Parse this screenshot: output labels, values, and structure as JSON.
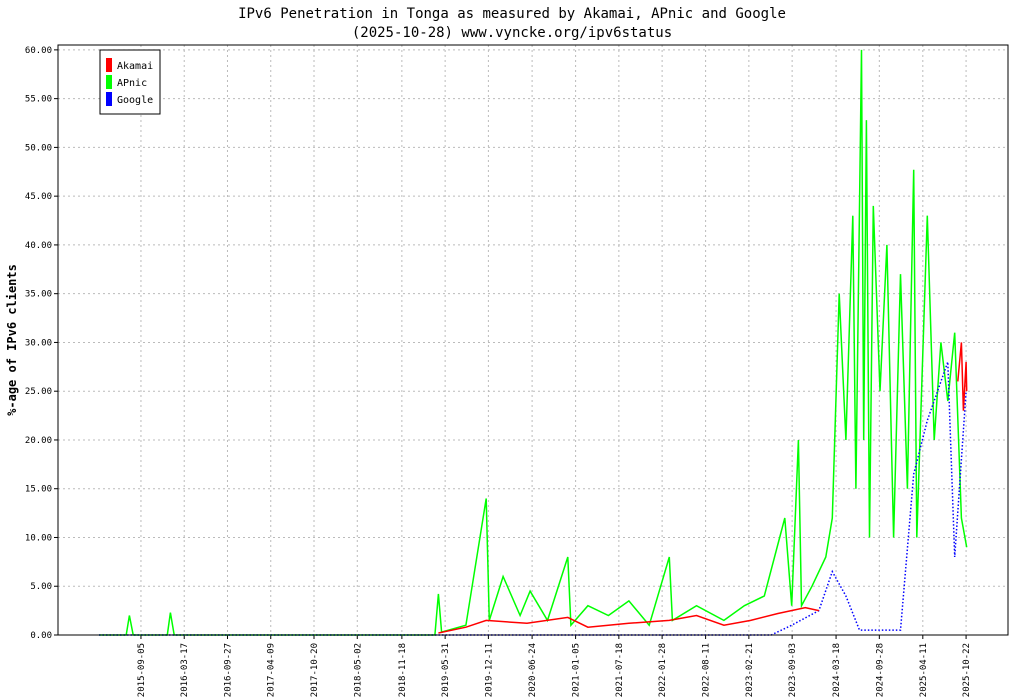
{
  "chart_data": {
    "type": "line",
    "title": "IPv6 Penetration in Tonga as measured by Akamai, APnic and Google",
    "subtitle": "(2025-10-28) www.vyncke.org/ipv6status",
    "y_label": "%-age of IPv6 clients",
    "legend": "upper left",
    "grid": true,
    "xlim": [
      "2014-08-29",
      "2026-04-28"
    ],
    "ylim": [
      0,
      60.5
    ],
    "xticks": [
      "2015-09-05",
      "2016-03-17",
      "2016-09-27",
      "2017-04-09",
      "2017-10-20",
      "2018-05-02",
      "2018-11-18",
      "2019-05-31",
      "2019-12-11",
      "2020-06-24",
      "2021-01-05",
      "2021-07-18",
      "2022-01-28",
      "2022-08-11",
      "2023-02-21",
      "2023-09-03",
      "2024-03-18",
      "2024-09-28",
      "2025-04-11",
      "2025-10-22"
    ],
    "yticks": [
      {
        "value": 0,
        "label": "0.00"
      },
      {
        "value": 5,
        "label": "5.00"
      },
      {
        "value": 10,
        "label": "10.00"
      },
      {
        "value": 15,
        "label": "15.00"
      },
      {
        "value": 20,
        "label": "20.00"
      },
      {
        "value": 25,
        "label": "25.00"
      },
      {
        "value": 30,
        "label": "30.00"
      },
      {
        "value": 35,
        "label": "35.00"
      },
      {
        "value": 40,
        "label": "40.00"
      },
      {
        "value": 45,
        "label": "45.00"
      },
      {
        "value": 50,
        "label": "50.00"
      },
      {
        "value": 55,
        "label": "55.00"
      },
      {
        "value": 60,
        "label": "60.00"
      }
    ],
    "series": [
      {
        "name": "Akamai",
        "color": "#ff0000",
        "style": "solid",
        "x": [
          "2019-05-01",
          "2019-09-01",
          "2019-12-01",
          "2020-06-01",
          "2020-12-01",
          "2021-03-01",
          "2021-09-01",
          "2022-03-01",
          "2022-07-01",
          "2022-11-01",
          "2023-03-01",
          "2023-07-01",
          "2023-11-01",
          "2024-01-01",
          "2024-02-01",
          "2025-09-15",
          "2025-10-01",
          "2025-10-10",
          "2025-10-22",
          "2025-10-25"
        ],
        "values": [
          0.2,
          0.8,
          1.5,
          1.2,
          1.8,
          0.8,
          1.2,
          1.5,
          2.0,
          1.0,
          1.5,
          2.2,
          2.8,
          2.5,
          null,
          26,
          30,
          23,
          28,
          25
        ]
      },
      {
        "name": "APnic",
        "color": "#00ff00",
        "style": "solid",
        "x": [
          "2015-03-01",
          "2015-07-01",
          "2015-07-15",
          "2015-08-01",
          "2016-01-01",
          "2016-01-15",
          "2016-02-01",
          "2019-04-15",
          "2019-05-01",
          "2019-05-15",
          "2019-09-01",
          "2019-12-01",
          "2019-12-15",
          "2020-02-15",
          "2020-05-01",
          "2020-06-15",
          "2020-09-01",
          "2020-12-01",
          "2020-12-15",
          "2021-03-01",
          "2021-06-01",
          "2021-09-01",
          "2021-12-01",
          "2022-03-01",
          "2022-03-15",
          "2022-07-01",
          "2022-11-01",
          "2023-02-01",
          "2023-05-01",
          "2023-08-01",
          "2023-09-01",
          "2023-10-01",
          "2023-10-15",
          "2023-12-01",
          "2024-02-01",
          "2024-03-01",
          "2024-04-01",
          "2024-05-01",
          "2024-06-01",
          "2024-06-15",
          "2024-07-10",
          "2024-07-20",
          "2024-08-01",
          "2024-08-15",
          "2024-09-01",
          "2024-10-01",
          "2024-11-01",
          "2024-12-01",
          "2025-01-01",
          "2025-02-01",
          "2025-03-01",
          "2025-03-15",
          "2025-05-01",
          "2025-06-01",
          "2025-07-01",
          "2025-08-01",
          "2025-09-01",
          "2025-10-01",
          "2025-10-25"
        ],
        "values": [
          0,
          0,
          2.0,
          0,
          0,
          2.3,
          0,
          0,
          4.2,
          0.3,
          1.0,
          14.0,
          1.5,
          6.0,
          2.0,
          4.5,
          1.5,
          8.0,
          1.0,
          3.0,
          2.0,
          3.5,
          1.0,
          8.0,
          1.5,
          3.0,
          1.5,
          3.0,
          4.0,
          12.0,
          3.0,
          20.0,
          3.0,
          5.0,
          8.0,
          12.0,
          35.0,
          20.0,
          43.0,
          15.0,
          60.0,
          20.0,
          52.8,
          10.0,
          44.0,
          25.0,
          40.0,
          10.0,
          37.0,
          15.0,
          47.7,
          10.0,
          43.0,
          20.0,
          30.0,
          24.0,
          31.0,
          12.0,
          9.0
        ]
      },
      {
        "name": "Google",
        "color": "#0000ff",
        "style": "dotted",
        "x": [
          "2015-03-01",
          "2023-06-01",
          "2023-09-01",
          "2024-01-01",
          "2024-03-01",
          "2024-05-01",
          "2024-07-01",
          "2025-01-01",
          "2025-03-01",
          "2025-05-01",
          "2025-08-01",
          "2025-09-01",
          "2025-10-22"
        ],
        "values": [
          0,
          0,
          1.0,
          2.5,
          6.5,
          4.0,
          0.5,
          0.5,
          16.5,
          22,
          28,
          8,
          25
        ]
      }
    ]
  }
}
